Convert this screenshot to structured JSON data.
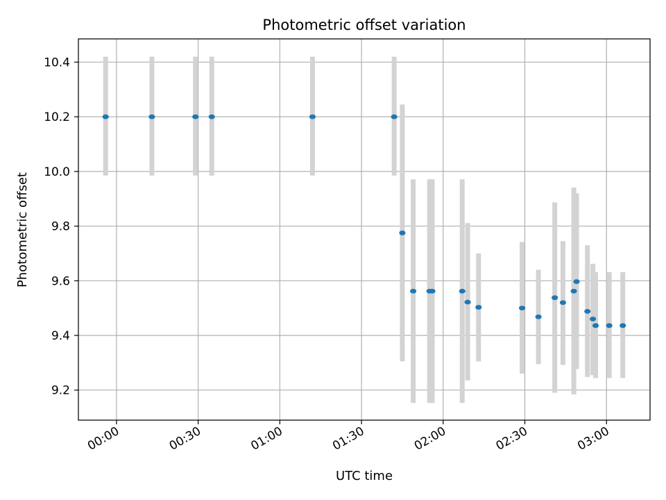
{
  "chart_data": {
    "type": "scatter",
    "title": "Photometric offset variation",
    "xlabel": "UTC time",
    "ylabel": "Photometric offset",
    "xlim": [
      "23:46",
      "03:16"
    ],
    "ylim": [
      9.09,
      10.485
    ],
    "grid": true,
    "x_tick_labels": [
      "00:00",
      "00:30",
      "01:00",
      "01:30",
      "02:00",
      "02:30",
      "03:00"
    ],
    "y_tick_labels": [
      "9.2",
      "9.4",
      "9.6",
      "9.8",
      "10.0",
      "10.2",
      "10.4"
    ],
    "y_ticks": [
      9.2,
      9.4,
      9.6,
      9.8,
      10.0,
      10.2,
      10.4
    ],
    "colors": {
      "point": "#1f77b4",
      "errorbar": "#d3d3d3",
      "grid": "#b0b0b0"
    },
    "points": [
      {
        "x": "23:56",
        "y": 10.2,
        "err_low": 9.985,
        "err_high": 10.42
      },
      {
        "x": "00:13",
        "y": 10.2,
        "err_low": 9.985,
        "err_high": 10.42
      },
      {
        "x": "00:29",
        "y": 10.2,
        "err_low": 9.985,
        "err_high": 10.42
      },
      {
        "x": "00:35",
        "y": 10.2,
        "err_low": 9.985,
        "err_high": 10.42
      },
      {
        "x": "01:12",
        "y": 10.2,
        "err_low": 9.985,
        "err_high": 10.42
      },
      {
        "x": "01:42",
        "y": 10.2,
        "err_low": 9.985,
        "err_high": 10.42
      },
      {
        "x": "01:45",
        "y": 9.775,
        "err_low": 9.305,
        "err_high": 10.245
      },
      {
        "x": "01:49",
        "y": 9.562,
        "err_low": 9.153,
        "err_high": 9.971
      },
      {
        "x": "01:55",
        "y": 9.562,
        "err_low": 9.153,
        "err_high": 9.971
      },
      {
        "x": "01:56",
        "y": 9.562,
        "err_low": 9.153,
        "err_high": 9.971
      },
      {
        "x": "02:07",
        "y": 9.562,
        "err_low": 9.153,
        "err_high": 9.971
      },
      {
        "x": "02:09",
        "y": 9.522,
        "err_low": 9.235,
        "err_high": 9.811
      },
      {
        "x": "02:13",
        "y": 9.503,
        "err_low": 9.305,
        "err_high": 9.7
      },
      {
        "x": "02:29",
        "y": 9.5,
        "err_low": 9.26,
        "err_high": 9.742
      },
      {
        "x": "02:35",
        "y": 9.468,
        "err_low": 9.295,
        "err_high": 9.64
      },
      {
        "x": "02:41",
        "y": 9.538,
        "err_low": 9.19,
        "err_high": 9.887
      },
      {
        "x": "02:44",
        "y": 9.52,
        "err_low": 9.292,
        "err_high": 9.745
      },
      {
        "x": "02:48",
        "y": 9.562,
        "err_low": 9.184,
        "err_high": 9.941
      },
      {
        "x": "02:49",
        "y": 9.597,
        "err_low": 9.277,
        "err_high": 9.92
      },
      {
        "x": "02:53",
        "y": 9.488,
        "err_low": 9.248,
        "err_high": 9.73
      },
      {
        "x": "02:55",
        "y": 9.46,
        "err_low": 9.255,
        "err_high": 9.662
      },
      {
        "x": "02:56",
        "y": 9.436,
        "err_low": 9.244,
        "err_high": 9.632
      },
      {
        "x": "03:01",
        "y": 9.436,
        "err_low": 9.244,
        "err_high": 9.632
      },
      {
        "x": "03:06",
        "y": 9.436,
        "err_low": 9.244,
        "err_high": 9.632
      }
    ]
  }
}
